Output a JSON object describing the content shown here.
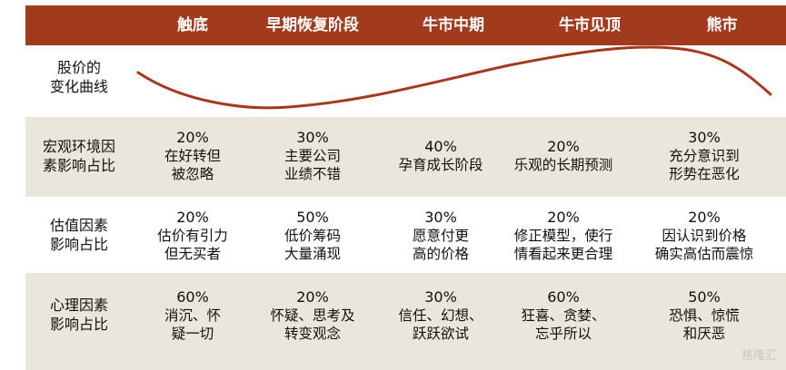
{
  "header": {
    "stages": [
      "触底",
      "早期恢复阶段",
      "牛市中期",
      "牛市见顶",
      "熊市"
    ]
  },
  "rows": [
    {
      "label": [
        "股价的",
        "变化曲线"
      ]
    },
    {
      "label": [
        "宏观环境因",
        "素影响占比"
      ],
      "cells": [
        {
          "pct": "20%",
          "lines": [
            "在好转但",
            "被忽略"
          ]
        },
        {
          "pct": "30%",
          "lines": [
            "主要公司",
            "业绩不错"
          ]
        },
        {
          "pct": "40%",
          "lines": [
            "孕育成长阶段"
          ]
        },
        {
          "pct": "20%",
          "lines": [
            "乐观的长期预测"
          ]
        },
        {
          "pct": "30%",
          "lines": [
            "充分意识到",
            "形势在恶化"
          ]
        }
      ]
    },
    {
      "label": [
        "估值因素",
        "影响占比"
      ],
      "cells": [
        {
          "pct": "20%",
          "lines": [
            "估价有引力",
            "但无买者"
          ]
        },
        {
          "pct": "50%",
          "lines": [
            "低价筹码",
            "大量涌现"
          ]
        },
        {
          "pct": "30%",
          "lines": [
            "愿意付更",
            "高的价格"
          ]
        },
        {
          "pct": "20%",
          "lines": [
            "修正模型，使行",
            "情看起来更合理"
          ]
        },
        {
          "pct": "20%",
          "lines": [
            "因认识到价格",
            "确实高估而震惊"
          ]
        }
      ]
    },
    {
      "label": [
        "心理因素",
        "影响占比"
      ],
      "cells": [
        {
          "pct": "60%",
          "lines": [
            "消沉、怀",
            "疑一切"
          ]
        },
        {
          "pct": "20%",
          "lines": [
            "怀疑、思考及",
            "转变观念"
          ]
        },
        {
          "pct": "30%",
          "lines": [
            "信任、幻想、",
            "跃跃欲试"
          ]
        },
        {
          "pct": "60%",
          "lines": [
            "狂喜、贪婪、",
            "忘乎所以"
          ]
        },
        {
          "pct": "50%",
          "lines": [
            "恐惧、惊慌",
            "和厌恶"
          ]
        }
      ]
    }
  ],
  "colors": {
    "header_bg": "#a23b1e",
    "row_shade": "#eae6dc",
    "curve": "#a23b1e"
  },
  "watermark": "格隆汇"
}
